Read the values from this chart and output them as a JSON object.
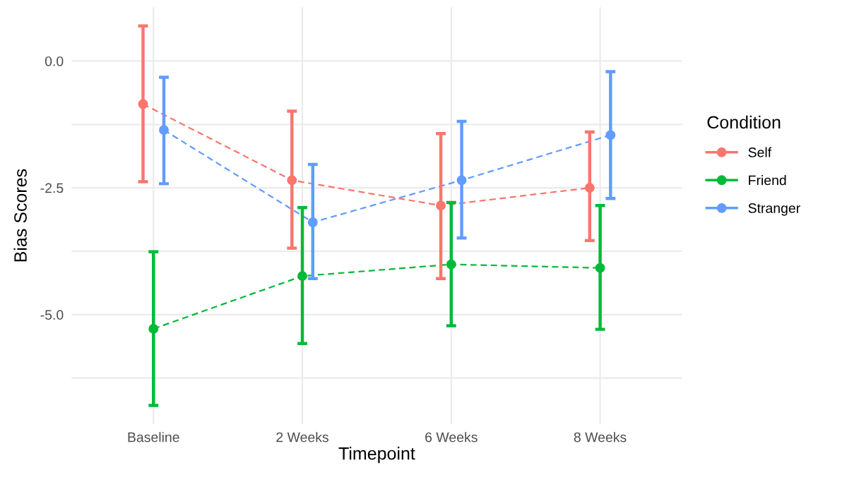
{
  "chart_data": {
    "type": "line",
    "xlabel": "Timepoint",
    "ylabel": "Bias Scores",
    "legend_title": "Condition",
    "categories": [
      "Baseline",
      "2 Weeks",
      "6 Weeks",
      "8 Weeks"
    ],
    "series": [
      {
        "name": "Self",
        "color": "#f8766d",
        "values": [
          -0.85,
          -2.35,
          -2.85,
          -2.5
        ],
        "errors": [
          [
            -2.38,
            0.69
          ],
          [
            -3.69,
            -0.99
          ],
          [
            -4.29,
            -1.43
          ],
          [
            -3.54,
            -1.4
          ]
        ]
      },
      {
        "name": "Friend",
        "color": "#00ba38",
        "values": [
          -5.28,
          -4.24,
          -4.01,
          -4.08
        ],
        "errors": [
          [
            -6.79,
            -3.76
          ],
          [
            -5.57,
            -2.89
          ],
          [
            -5.22,
            -2.79
          ],
          [
            -5.29,
            -2.85
          ]
        ]
      },
      {
        "name": "Stranger",
        "color": "#619cff",
        "values": [
          -1.36,
          -3.18,
          -2.35,
          -1.46
        ],
        "errors": [
          [
            -2.42,
            -0.32
          ],
          [
            -4.29,
            -2.04
          ],
          [
            -3.49,
            -1.19
          ],
          [
            -2.71,
            -0.21
          ]
        ]
      }
    ],
    "ylim": [
      -7.16,
      1.06
    ],
    "yticks": [
      {
        "value": -6.25,
        "label": null
      },
      {
        "value": -5.0,
        "label": "-5.0"
      },
      {
        "value": -3.75,
        "label": null
      },
      {
        "value": -2.5,
        "label": "-2.5"
      },
      {
        "value": -1.25,
        "label": null
      },
      {
        "value": 0.0,
        "label": "0.0"
      }
    ],
    "grid": true,
    "legend": "right",
    "marker": "circle",
    "line_style": "dashed"
  }
}
